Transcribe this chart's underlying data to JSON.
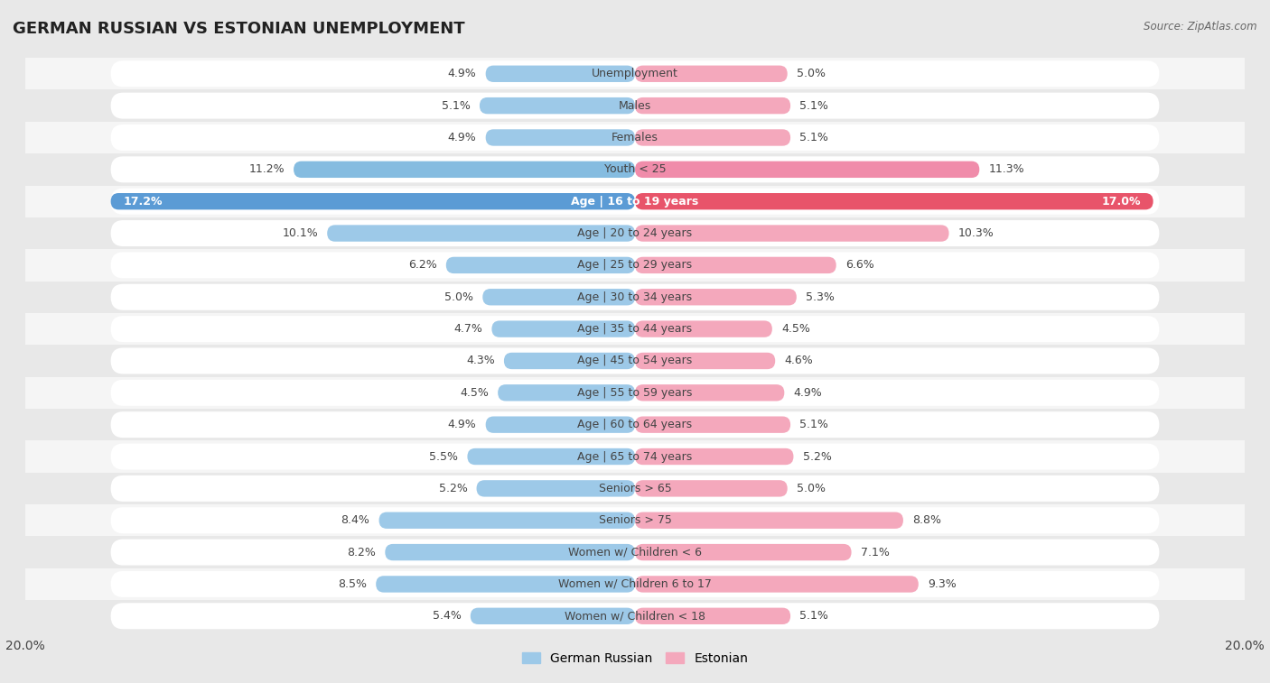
{
  "title": "GERMAN RUSSIAN VS ESTONIAN UNEMPLOYMENT",
  "source": "Source: ZipAtlas.com",
  "categories": [
    "Unemployment",
    "Males",
    "Females",
    "Youth < 25",
    "Age | 16 to 19 years",
    "Age | 20 to 24 years",
    "Age | 25 to 29 years",
    "Age | 30 to 34 years",
    "Age | 35 to 44 years",
    "Age | 45 to 54 years",
    "Age | 55 to 59 years",
    "Age | 60 to 64 years",
    "Age | 65 to 74 years",
    "Seniors > 65",
    "Seniors > 75",
    "Women w/ Children < 6",
    "Women w/ Children 6 to 17",
    "Women w/ Children < 18"
  ],
  "german_russian": [
    4.9,
    5.1,
    4.9,
    11.2,
    17.2,
    10.1,
    6.2,
    5.0,
    4.7,
    4.3,
    4.5,
    4.9,
    5.5,
    5.2,
    8.4,
    8.2,
    8.5,
    5.4
  ],
  "estonian": [
    5.0,
    5.1,
    5.1,
    11.3,
    17.0,
    10.3,
    6.6,
    5.3,
    4.5,
    4.6,
    4.9,
    5.1,
    5.2,
    5.0,
    8.8,
    7.1,
    9.3,
    5.1
  ],
  "german_russian_color": "#9DC9E8",
  "estonian_color": "#F4A8BC",
  "german_russian_highlight": "#5B9BD5",
  "estonian_highlight": "#E8546A",
  "german_russian_youth": "#85BCE0",
  "estonian_youth": "#F08CAA",
  "bg_color": "#e8e8e8",
  "row_bg_odd": "#f5f5f5",
  "row_bg_even": "#e8e8e8",
  "row_pill_color": "#ffffff",
  "xlim": 20.0,
  "legend_label_left": "German Russian",
  "legend_label_right": "Estonian",
  "value_fontsize": 9.0,
  "label_fontsize": 9.0,
  "title_fontsize": 13
}
